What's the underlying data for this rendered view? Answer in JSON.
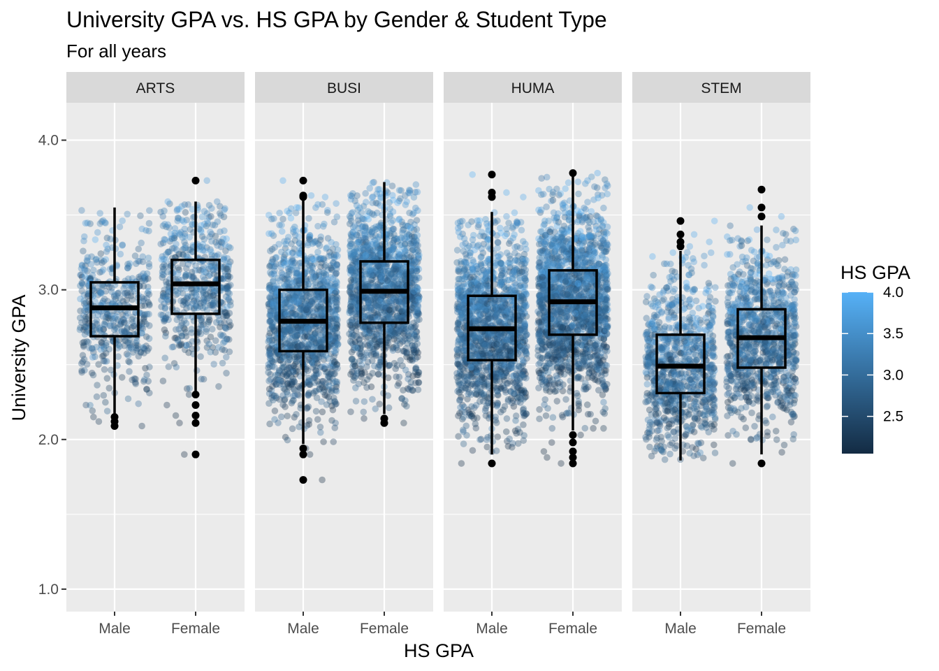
{
  "chart_data": {
    "type": "boxplot",
    "title": "University GPA vs. HS GPA by Gender & Student Type",
    "subtitle": "For all years",
    "xlabel": "HS GPA",
    "ylabel": "University GPA",
    "ylim": [
      0.85,
      4.25
    ],
    "y_ticks": [
      "1.0",
      "2.0",
      "3.0",
      "4.0"
    ],
    "categories": [
      "Male",
      "Female"
    ],
    "grid": true,
    "legend": {
      "title": "HS GPA",
      "position": "right",
      "range": [
        2.05,
        4.0
      ],
      "ticks": [
        "2.5",
        "3.0",
        "3.5",
        "4.0"
      ],
      "color_low": "#132B43",
      "color_high": "#56B1F7"
    },
    "panels": [
      {
        "name": "ARTS",
        "boxes": [
          {
            "category": "Male",
            "min": 2.17,
            "q1": 2.69,
            "median": 2.88,
            "q3": 3.05,
            "max": 3.55,
            "outliers": [
              2.09,
              2.12,
              2.15
            ],
            "n_points": 500
          },
          {
            "category": "Female",
            "min": 2.32,
            "q1": 2.84,
            "median": 3.04,
            "q3": 3.2,
            "max": 3.59,
            "outliers": [
              3.73,
              2.3,
              2.23,
              2.16,
              2.11,
              1.9
            ],
            "n_points": 550
          }
        ]
      },
      {
        "name": "BUSI",
        "boxes": [
          {
            "category": "Male",
            "min": 1.97,
            "q1": 2.59,
            "median": 2.79,
            "q3": 3.0,
            "max": 3.6,
            "outliers": [
              3.73,
              3.62,
              3.63,
              1.94,
              1.9,
              1.73
            ],
            "n_points": 1300
          },
          {
            "category": "Female",
            "min": 2.17,
            "q1": 2.78,
            "median": 2.99,
            "q3": 3.19,
            "max": 3.72,
            "outliers": [
              2.14,
              2.11
            ],
            "n_points": 1400
          }
        ]
      },
      {
        "name": "HUMA",
        "boxes": [
          {
            "category": "Male",
            "min": 1.9,
            "q1": 2.53,
            "median": 2.74,
            "q3": 2.96,
            "max": 3.52,
            "outliers": [
              3.77,
              3.65,
              3.62,
              1.84
            ],
            "n_points": 1500
          },
          {
            "category": "Female",
            "min": 2.06,
            "q1": 2.7,
            "median": 2.92,
            "q3": 3.13,
            "max": 3.76,
            "outliers": [
              3.78,
              2.03,
              1.98,
              1.92,
              1.88,
              1.84
            ],
            "n_points": 1700
          }
        ]
      },
      {
        "name": "STEM",
        "boxes": [
          {
            "category": "Male",
            "min": 1.86,
            "q1": 2.31,
            "median": 2.49,
            "q3": 2.7,
            "max": 3.26,
            "outliers": [
              3.46,
              3.37,
              3.32,
              3.29
            ],
            "n_points": 900
          },
          {
            "category": "Female",
            "min": 1.9,
            "q1": 2.48,
            "median": 2.68,
            "q3": 2.87,
            "max": 3.43,
            "outliers": [
              3.67,
              3.55,
              3.49,
              1.84
            ],
            "n_points": 1000
          }
        ]
      }
    ]
  }
}
